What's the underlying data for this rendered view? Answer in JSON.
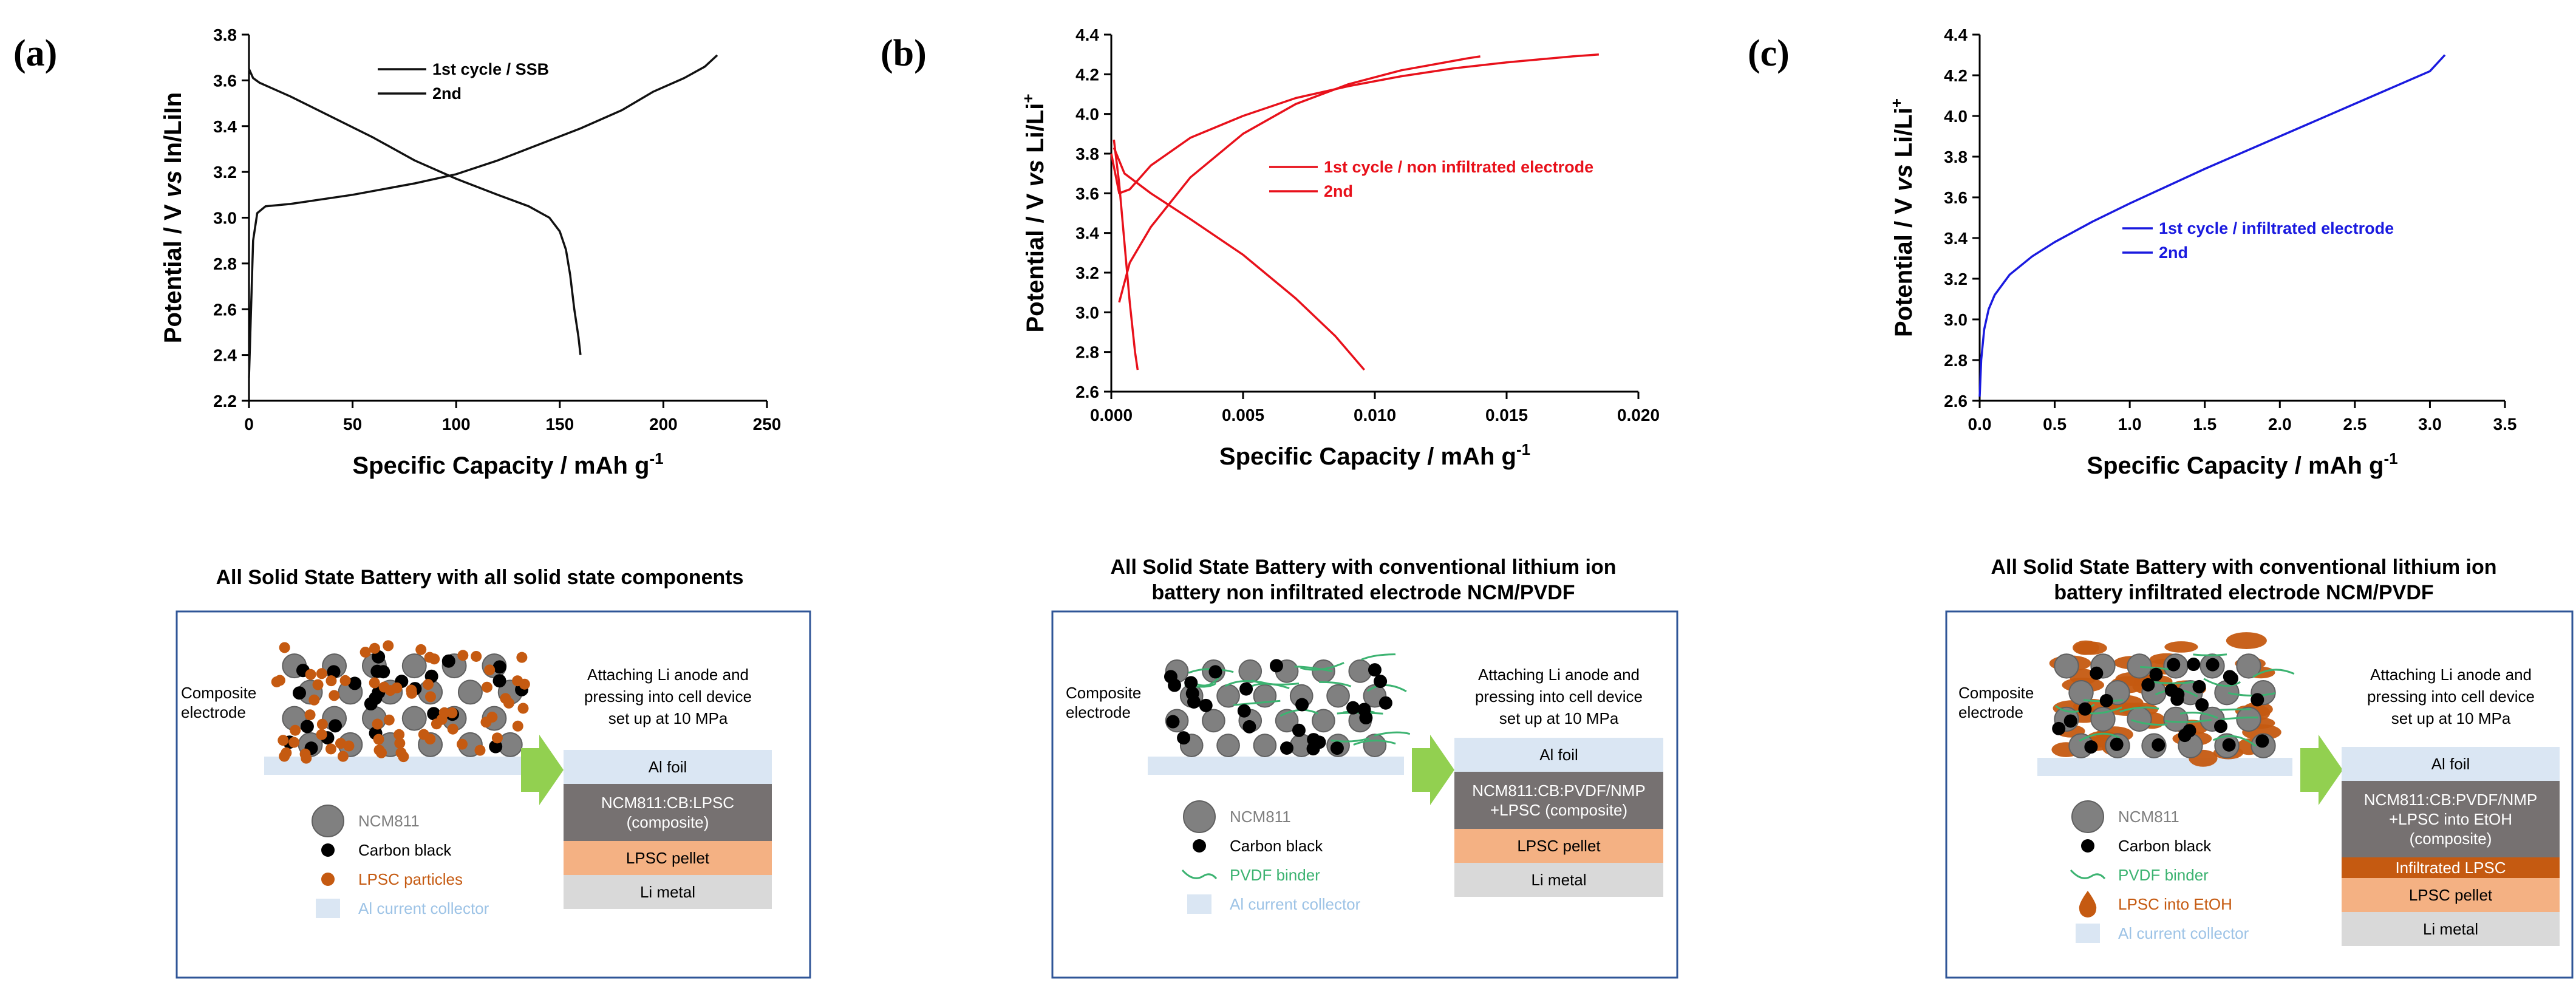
{
  "chart_data": [
    {
      "panel": "(a)",
      "type": "line",
      "xlabel": "Specific Capacity / mAh g",
      "xlabel_sup": "-1",
      "ylabel": "Potential / V vs In/LiIn",
      "xlim": [
        0,
        250
      ],
      "ylim": [
        2.2,
        3.8
      ],
      "xticks": [
        "0",
        "50",
        "100",
        "150",
        "200",
        "250"
      ],
      "yticks": [
        "2.2",
        "2.4",
        "2.6",
        "2.8",
        "3.0",
        "3.2",
        "3.4",
        "3.6",
        "3.8"
      ],
      "color": "#111111",
      "legend": [
        "1st cycle / SSB",
        "2nd"
      ],
      "series": [
        {
          "name": "charge",
          "points": [
            [
              0,
              2.3
            ],
            [
              1,
              2.6
            ],
            [
              2,
              2.9
            ],
            [
              4,
              3.02
            ],
            [
              8,
              3.05
            ],
            [
              20,
              3.06
            ],
            [
              50,
              3.1
            ],
            [
              80,
              3.15
            ],
            [
              100,
              3.19
            ],
            [
              120,
              3.25
            ],
            [
              140,
              3.32
            ],
            [
              160,
              3.39
            ],
            [
              180,
              3.47
            ],
            [
              195,
              3.55
            ],
            [
              210,
              3.61
            ],
            [
              220,
              3.66
            ],
            [
              226,
              3.71
            ]
          ]
        },
        {
          "name": "discharge",
          "points": [
            [
              0,
              3.65
            ],
            [
              2,
              3.61
            ],
            [
              5,
              3.59
            ],
            [
              10,
              3.57
            ],
            [
              20,
              3.53
            ],
            [
              40,
              3.44
            ],
            [
              60,
              3.35
            ],
            [
              80,
              3.25
            ],
            [
              100,
              3.17
            ],
            [
              120,
              3.1
            ],
            [
              135,
              3.05
            ],
            [
              145,
              3.0
            ],
            [
              150,
              2.94
            ],
            [
              153,
              2.86
            ],
            [
              155,
              2.75
            ],
            [
              157,
              2.6
            ],
            [
              159,
              2.48
            ],
            [
              160,
              2.4
            ]
          ]
        }
      ]
    },
    {
      "panel": "(b)",
      "type": "line",
      "xlabel": "Specific Capacity / mAh g",
      "xlabel_sup": "-1",
      "ylabel": "Potential / V vs Li/Li",
      "ylabel_sup": "+",
      "xlim": [
        0,
        0.02
      ],
      "ylim": [
        2.6,
        4.4
      ],
      "xticks": [
        "0.000",
        "0.005",
        "0.010",
        "0.015",
        "0.020"
      ],
      "yticks": [
        "2.6",
        "2.8",
        "3.0",
        "3.2",
        "3.4",
        "3.6",
        "3.8",
        "4.0",
        "4.2",
        "4.4"
      ],
      "color": "#e8111b",
      "legend": [
        "1st cycle / non infiltrated electrode",
        "2nd"
      ],
      "series": [
        {
          "name": "charge-1",
          "points": [
            [
              0,
              3.8
            ],
            [
              0.0003,
              3.6
            ],
            [
              0.0007,
              3.62
            ],
            [
              0.0015,
              3.74
            ],
            [
              0.003,
              3.88
            ],
            [
              0.005,
              3.99
            ],
            [
              0.007,
              4.08
            ],
            [
              0.009,
              4.14
            ],
            [
              0.011,
              4.19
            ],
            [
              0.013,
              4.23
            ],
            [
              0.015,
              4.26
            ],
            [
              0.0175,
              4.29
            ],
            [
              0.0185,
              4.3
            ]
          ]
        },
        {
          "name": "discharge-1",
          "points": [
            [
              0.0001,
              3.83
            ],
            [
              0.0005,
              3.7
            ],
            [
              0.0015,
              3.6
            ],
            [
              0.003,
              3.47
            ],
            [
              0.005,
              3.29
            ],
            [
              0.007,
              3.07
            ],
            [
              0.0085,
              2.88
            ],
            [
              0.0096,
              2.71
            ]
          ]
        },
        {
          "name": "charge-2",
          "points": [
            [
              0.0003,
              3.05
            ],
            [
              0.0007,
              3.25
            ],
            [
              0.0015,
              3.43
            ],
            [
              0.003,
              3.68
            ],
            [
              0.005,
              3.9
            ],
            [
              0.007,
              4.05
            ],
            [
              0.009,
              4.15
            ],
            [
              0.011,
              4.22
            ],
            [
              0.0135,
              4.28
            ],
            [
              0.014,
              4.29
            ]
          ]
        },
        {
          "name": "discharge-2",
          "points": [
            [
              0.0001,
              3.87
            ],
            [
              0.0003,
              3.65
            ],
            [
              0.0005,
              3.35
            ],
            [
              0.0007,
              3.05
            ],
            [
              0.0009,
              2.8
            ],
            [
              0.001,
              2.71
            ]
          ]
        }
      ]
    },
    {
      "panel": "(c)",
      "type": "line",
      "xlabel": "Specific Capacity / mAh g",
      "xlabel_sup": "-1",
      "ylabel": "Potential / V vs Li/Li",
      "ylabel_sup": "+",
      "xlim": [
        0,
        3.5
      ],
      "ylim": [
        2.6,
        4.4
      ],
      "xticks": [
        "0.0",
        "0.5",
        "1.0",
        "1.5",
        "2.0",
        "2.5",
        "3.0",
        "3.5"
      ],
      "yticks": [
        "2.6",
        "2.8",
        "3.0",
        "3.2",
        "3.4",
        "3.6",
        "3.8",
        "4.0",
        "4.2",
        "4.4"
      ],
      "color": "#1a1adf",
      "legend": [
        "1st cycle / infiltrated electrode",
        "2nd"
      ],
      "series": [
        {
          "name": "charge",
          "points": [
            [
              0,
              2.62
            ],
            [
              0.01,
              2.8
            ],
            [
              0.03,
              2.95
            ],
            [
              0.06,
              3.05
            ],
            [
              0.1,
              3.12
            ],
            [
              0.2,
              3.22
            ],
            [
              0.35,
              3.31
            ],
            [
              0.5,
              3.38
            ],
            [
              0.75,
              3.48
            ],
            [
              1.0,
              3.57
            ],
            [
              1.5,
              3.74
            ],
            [
              2.0,
              3.9
            ],
            [
              2.5,
              4.06
            ],
            [
              3.0,
              4.22
            ],
            [
              3.1,
              4.3
            ]
          ]
        }
      ]
    }
  ],
  "schematics": [
    {
      "title_lines": [
        "All Solid State Battery with all solid state components"
      ],
      "composite_label": [
        "Composite",
        "electrode"
      ],
      "attach_text": [
        "Attaching Li anode and",
        "pressing into cell device",
        "set up at 10 MPa"
      ],
      "legend": [
        {
          "icon": "ncm",
          "text": "NCM811"
        },
        {
          "icon": "cb",
          "text": "Carbon black"
        },
        {
          "icon": "lpsc-dot",
          "text": "LPSC particles"
        },
        {
          "icon": "al",
          "text": "Al current collector"
        }
      ],
      "stack": [
        {
          "lines": [
            "Al foil"
          ],
          "color": "#dae6f3",
          "text_color": "#000000"
        },
        {
          "lines": [
            "NCM811:CB:LPSC",
            "(composite)"
          ],
          "color": "#767171",
          "text_color": "#ffffff"
        },
        {
          "lines": [
            "LPSC pellet"
          ],
          "color": "#f4b183",
          "text_color": "#000000"
        },
        {
          "lines": [
            "Li metal"
          ],
          "color": "#d9d9d9",
          "text_color": "#000000"
        }
      ]
    },
    {
      "title_lines": [
        "All Solid State Battery with conventional lithium ion",
        "battery non infiltrated electrode NCM/PVDF"
      ],
      "composite_label": [
        "Composite",
        "electrode"
      ],
      "attach_text": [
        "Attaching Li anode and",
        "pressing into cell device",
        "set up at 10 MPa"
      ],
      "legend": [
        {
          "icon": "ncm",
          "text": "NCM811"
        },
        {
          "icon": "cb",
          "text": "Carbon black"
        },
        {
          "icon": "pvdf",
          "text": "PVDF binder"
        },
        {
          "icon": "al",
          "text": "Al current collector"
        }
      ],
      "stack": [
        {
          "lines": [
            "Al foil"
          ],
          "color": "#dae6f3",
          "text_color": "#000000"
        },
        {
          "lines": [
            "NCM811:CB:PVDF/NMP",
            "+LPSC (composite)"
          ],
          "color": "#767171",
          "text_color": "#ffffff"
        },
        {
          "lines": [
            "LPSC pellet"
          ],
          "color": "#f4b183",
          "text_color": "#000000"
        },
        {
          "lines": [
            "Li metal"
          ],
          "color": "#d9d9d9",
          "text_color": "#000000"
        }
      ]
    },
    {
      "title_lines": [
        "All Solid State Battery with conventional lithium ion",
        "battery infiltrated electrode NCM/PVDF"
      ],
      "composite_label": [
        "Composite",
        "electrode"
      ],
      "attach_text": [
        "Attaching Li anode and",
        "pressing into cell device",
        "set up at 10 MPa"
      ],
      "legend": [
        {
          "icon": "ncm",
          "text": "NCM811"
        },
        {
          "icon": "cb",
          "text": "Carbon black"
        },
        {
          "icon": "pvdf",
          "text": "PVDF binder"
        },
        {
          "icon": "drop",
          "text": "LPSC into EtOH"
        },
        {
          "icon": "al",
          "text": "Al current collector"
        }
      ],
      "stack": [
        {
          "lines": [
            "Al foil"
          ],
          "color": "#dae6f3",
          "text_color": "#000000"
        },
        {
          "lines": [
            "NCM811:CB:PVDF/NMP",
            "+LPSC into EtOH",
            "(composite)"
          ],
          "color": "#767171",
          "text_color": "#ffffff"
        },
        {
          "lines": [
            "Infiltrated LPSC"
          ],
          "color": "#c55a11",
          "text_color": "#ffffff"
        },
        {
          "lines": [
            "LPSC pellet"
          ],
          "color": "#f4b183",
          "text_color": "#000000"
        },
        {
          "lines": [
            "Li metal"
          ],
          "color": "#d9d9d9",
          "text_color": "#000000"
        }
      ]
    }
  ],
  "colors": {
    "frame": "#2f5597",
    "arrow": "#92d050",
    "ncm": "#808080",
    "lpsc": "#c55a11",
    "pvdf": "#3cb371",
    "al": "#dae6f3"
  }
}
